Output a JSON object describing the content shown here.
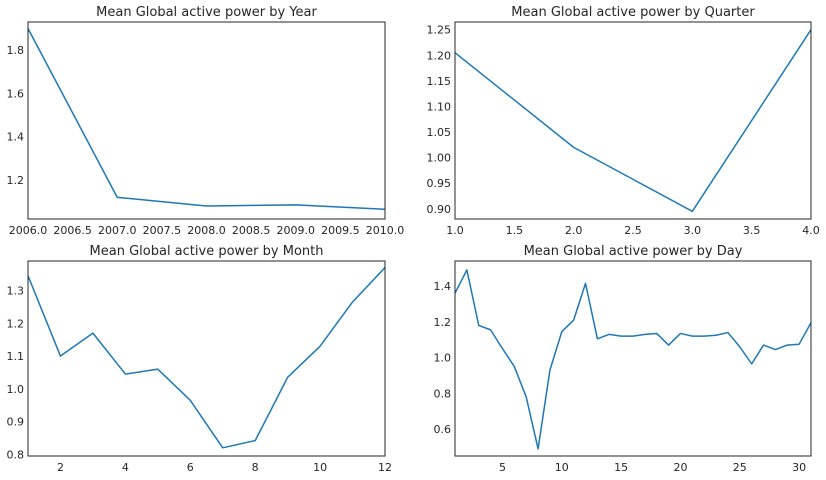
{
  "chart_data": [
    {
      "type": "line",
      "title": "Mean Global active power by Year",
      "x": [
        2006,
        2007,
        2008,
        2009,
        2010
      ],
      "series": [
        {
          "values": [
            1.9,
            1.12,
            1.08,
            1.085,
            1.065
          ]
        }
      ],
      "xlim": [
        2006,
        2010
      ],
      "ylim": [
        1.02,
        1.93
      ],
      "xticks": [
        2006.0,
        2006.5,
        2007.0,
        2007.5,
        2008.0,
        2008.5,
        2009.0,
        2009.5,
        2010.0
      ],
      "xticklabels": [
        "2006.0",
        "2006.5",
        "2007.0",
        "2007.5",
        "2008.0",
        "2008.5",
        "2009.0",
        "2009.5",
        "2010.0"
      ],
      "yticks": [
        1.2,
        1.4,
        1.6,
        1.8
      ],
      "yticklabels": [
        "1.2",
        "1.4",
        "1.6",
        "1.8"
      ],
      "color": "#1f77b4",
      "grid": false
    },
    {
      "type": "line",
      "title": "Mean Global active power by Quarter",
      "x": [
        1,
        2,
        3,
        4
      ],
      "series": [
        {
          "values": [
            1.205,
            1.02,
            0.895,
            1.25
          ]
        }
      ],
      "xlim": [
        1,
        4
      ],
      "ylim": [
        0.88,
        1.265
      ],
      "xticks": [
        1.0,
        1.5,
        2.0,
        2.5,
        3.0,
        3.5,
        4.0
      ],
      "xticklabels": [
        "1.0",
        "1.5",
        "2.0",
        "2.5",
        "3.0",
        "3.5",
        "4.0"
      ],
      "yticks": [
        0.9,
        0.95,
        1.0,
        1.05,
        1.1,
        1.15,
        1.2,
        1.25
      ],
      "yticklabels": [
        "0.90",
        "0.95",
        "1.00",
        "1.05",
        "1.10",
        "1.15",
        "1.20",
        "1.25"
      ],
      "color": "#1f77b4",
      "grid": false
    },
    {
      "type": "line",
      "title": "Mean Global active power by Month",
      "x": [
        1,
        2,
        3,
        4,
        5,
        6,
        7,
        8,
        9,
        10,
        11,
        12
      ],
      "series": [
        {
          "values": [
            1.345,
            1.1,
            1.17,
            1.045,
            1.06,
            0.965,
            0.82,
            0.842,
            1.035,
            1.13,
            1.265,
            1.37
          ]
        }
      ],
      "xlim": [
        1,
        12
      ],
      "ylim": [
        0.795,
        1.39
      ],
      "xticks": [
        2,
        4,
        6,
        8,
        10,
        12
      ],
      "xticklabels": [
        "2",
        "4",
        "6",
        "8",
        "10",
        "12"
      ],
      "yticks": [
        0.8,
        0.9,
        1.0,
        1.1,
        1.2,
        1.3
      ],
      "yticklabels": [
        "0.8",
        "0.9",
        "1.0",
        "1.1",
        "1.2",
        "1.3"
      ],
      "color": "#1f77b4",
      "grid": false
    },
    {
      "type": "line",
      "title": "Mean Global active power by Day",
      "x": [
        1,
        2,
        3,
        4,
        5,
        6,
        7,
        8,
        9,
        10,
        11,
        12,
        13,
        14,
        15,
        16,
        17,
        18,
        19,
        20,
        21,
        22,
        23,
        24,
        25,
        26,
        27,
        28,
        29,
        30,
        31
      ],
      "series": [
        {
          "values": [
            1.36,
            1.49,
            1.18,
            1.155,
            1.05,
            0.95,
            0.78,
            0.49,
            0.93,
            1.145,
            1.21,
            1.415,
            1.105,
            1.13,
            1.12,
            1.12,
            1.13,
            1.135,
            1.07,
            1.135,
            1.12,
            1.12,
            1.125,
            1.14,
            1.06,
            0.965,
            1.07,
            1.045,
            1.07,
            1.075,
            1.195
          ]
        }
      ],
      "xlim": [
        1,
        31
      ],
      "ylim": [
        0.45,
        1.54
      ],
      "xticks": [
        5,
        10,
        15,
        20,
        25,
        30
      ],
      "xticklabels": [
        "5",
        "10",
        "15",
        "20",
        "25",
        "30"
      ],
      "yticks": [
        0.6,
        0.8,
        1.0,
        1.2,
        1.4
      ],
      "yticklabels": [
        "0.6",
        "0.8",
        "1.0",
        "1.2",
        "1.4"
      ],
      "color": "#1f77b4",
      "grid": false
    }
  ]
}
